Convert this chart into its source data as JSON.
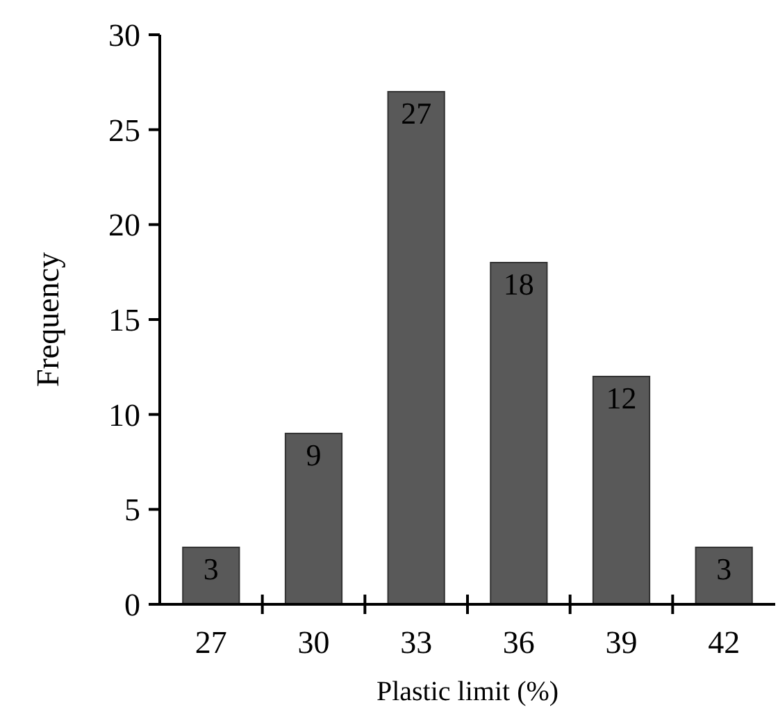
{
  "chart_data": {
    "type": "bar",
    "xlabel": "Plastic limit (%)",
    "ylabel": "Frequency",
    "categories": [
      "27",
      "30",
      "33",
      "36",
      "39",
      "42"
    ],
    "values": [
      3,
      9,
      27,
      18,
      12,
      3
    ],
    "color": "#595959",
    "ylim": [
      0,
      30
    ],
    "yticks": [
      0,
      5,
      10,
      15,
      20,
      25,
      30
    ],
    "grid": false,
    "data_labels": true
  }
}
